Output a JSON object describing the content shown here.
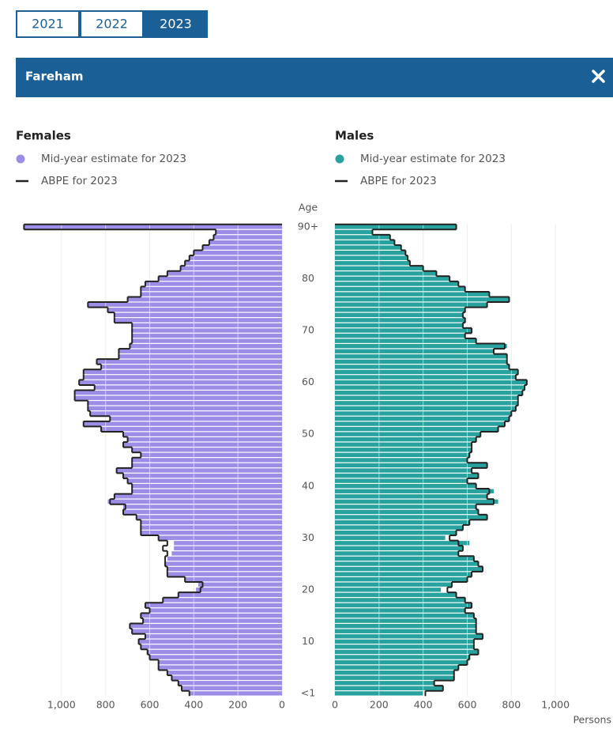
{
  "tabs": [
    "2021",
    "2022",
    "2023"
  ],
  "selected_tab": 2,
  "header": {
    "title": "Fareham"
  },
  "chart_data": {
    "type": "pyramid",
    "age_label": "Age",
    "x_label": "Persons",
    "categories": [
      "<1",
      null,
      null,
      null,
      null,
      null,
      null,
      null,
      null,
      null,
      "10",
      null,
      null,
      null,
      null,
      null,
      null,
      null,
      null,
      null,
      "20",
      null,
      null,
      null,
      null,
      null,
      null,
      null,
      null,
      null,
      "30",
      null,
      null,
      null,
      null,
      null,
      null,
      null,
      null,
      null,
      "40",
      null,
      null,
      null,
      null,
      null,
      null,
      null,
      null,
      null,
      "50",
      null,
      null,
      null,
      null,
      null,
      null,
      null,
      null,
      null,
      "60",
      null,
      null,
      null,
      null,
      null,
      null,
      null,
      null,
      null,
      "70",
      null,
      null,
      null,
      null,
      null,
      null,
      null,
      null,
      null,
      "80",
      null,
      null,
      null,
      null,
      null,
      null,
      null,
      null,
      null,
      "90+"
    ],
    "xlim": [
      0,
      1200
    ],
    "xticks": [
      0,
      200,
      400,
      600,
      800,
      {
        "value": 1000,
        "label": "1,000"
      }
    ],
    "grid": true,
    "panels": [
      {
        "title": "Females",
        "side": "left",
        "series": [
          {
            "name": "Mid-year estimate for 2023",
            "color": "#9d8de6",
            "values": [
              420,
              455,
              470,
              500,
              520,
              560,
              560,
              600,
              610,
              640,
              650,
              620,
              680,
              690,
              630,
              640,
              600,
              620,
              540,
              470,
              390,
              380,
              440,
              520,
              520,
              530,
              520,
              500,
              490,
              490,
              560,
              640,
              640,
              640,
              660,
              720,
              720,
              790,
              760,
              680,
              680,
              700,
              720,
              750,
              680,
              680,
              640,
              680,
              720,
              700,
              720,
              820,
              900,
              780,
              870,
              880,
              880,
              940,
              940,
              850,
              920,
              900,
              900,
              820,
              840,
              740,
              740,
              690,
              680,
              680,
              680,
              680,
              760,
              760,
              790,
              880,
              700,
              640,
              640,
              620,
              560,
              520,
              460,
              440,
              420,
              400,
              360,
              330,
              310,
              300,
              1170
            ]
          },
          {
            "name": "ABPE for 2023",
            "color": "#222222",
            "values": [
              420,
              455,
              470,
              500,
              520,
              560,
              560,
              600,
              610,
              640,
              650,
              620,
              680,
              690,
              630,
              640,
              600,
              620,
              540,
              470,
              370,
              360,
              440,
              520,
              520,
              530,
              530,
              520,
              540,
              520,
              560,
              640,
              640,
              640,
              660,
              720,
              710,
              780,
              760,
              680,
              680,
              700,
              720,
              750,
              680,
              680,
              640,
              680,
              720,
              700,
              720,
              820,
              900,
              780,
              870,
              880,
              880,
              940,
              940,
              850,
              920,
              900,
              900,
              820,
              840,
              740,
              740,
              690,
              680,
              680,
              680,
              680,
              760,
              760,
              790,
              880,
              700,
              640,
              640,
              620,
              560,
              520,
              460,
              440,
              420,
              400,
              360,
              330,
              310,
              300,
              1170
            ]
          }
        ]
      },
      {
        "title": "Males",
        "side": "right",
        "series": [
          {
            "name": "Mid-year estimate for 2023",
            "color": "#28a29e",
            "values": [
              400,
              490,
              450,
              540,
              540,
              560,
              600,
              610,
              650,
              630,
              630,
              670,
              640,
              640,
              640,
              630,
              590,
              620,
              590,
              550,
              480,
              530,
              600,
              620,
              670,
              650,
              630,
              560,
              580,
              610,
              500,
              550,
              580,
              610,
              690,
              650,
              640,
              740,
              690,
              720,
              640,
              600,
              650,
              620,
              690,
              600,
              610,
              620,
              620,
              640,
              660,
              740,
              770,
              790,
              800,
              820,
              830,
              830,
              850,
              860,
              870,
              820,
              830,
              790,
              780,
              780,
              720,
              780,
              640,
              590,
              620,
              580,
              590,
              580,
              590,
              690,
              790,
              700,
              590,
              560,
              520,
              460,
              400,
              340,
              330,
              320,
              300,
              270,
              250,
              170,
              550
            ]
          },
          {
            "name": "ABPE for 2023",
            "color": "#222222",
            "values": [
              410,
              490,
              450,
              540,
              540,
              560,
              600,
              610,
              650,
              630,
              630,
              670,
              640,
              640,
              640,
              630,
              590,
              620,
              590,
              550,
              510,
              530,
              600,
              620,
              670,
              650,
              630,
              560,
              580,
              560,
              520,
              550,
              580,
              610,
              690,
              650,
              640,
              720,
              690,
              700,
              640,
              600,
              650,
              620,
              690,
              600,
              610,
              620,
              620,
              640,
              660,
              740,
              770,
              790,
              800,
              820,
              830,
              830,
              850,
              860,
              870,
              820,
              830,
              790,
              780,
              780,
              720,
              770,
              640,
              590,
              620,
              580,
              590,
              580,
              590,
              690,
              790,
              700,
              590,
              560,
              520,
              460,
              400,
              340,
              330,
              320,
              300,
              270,
              250,
              170,
              550
            ]
          }
        ]
      }
    ]
  }
}
